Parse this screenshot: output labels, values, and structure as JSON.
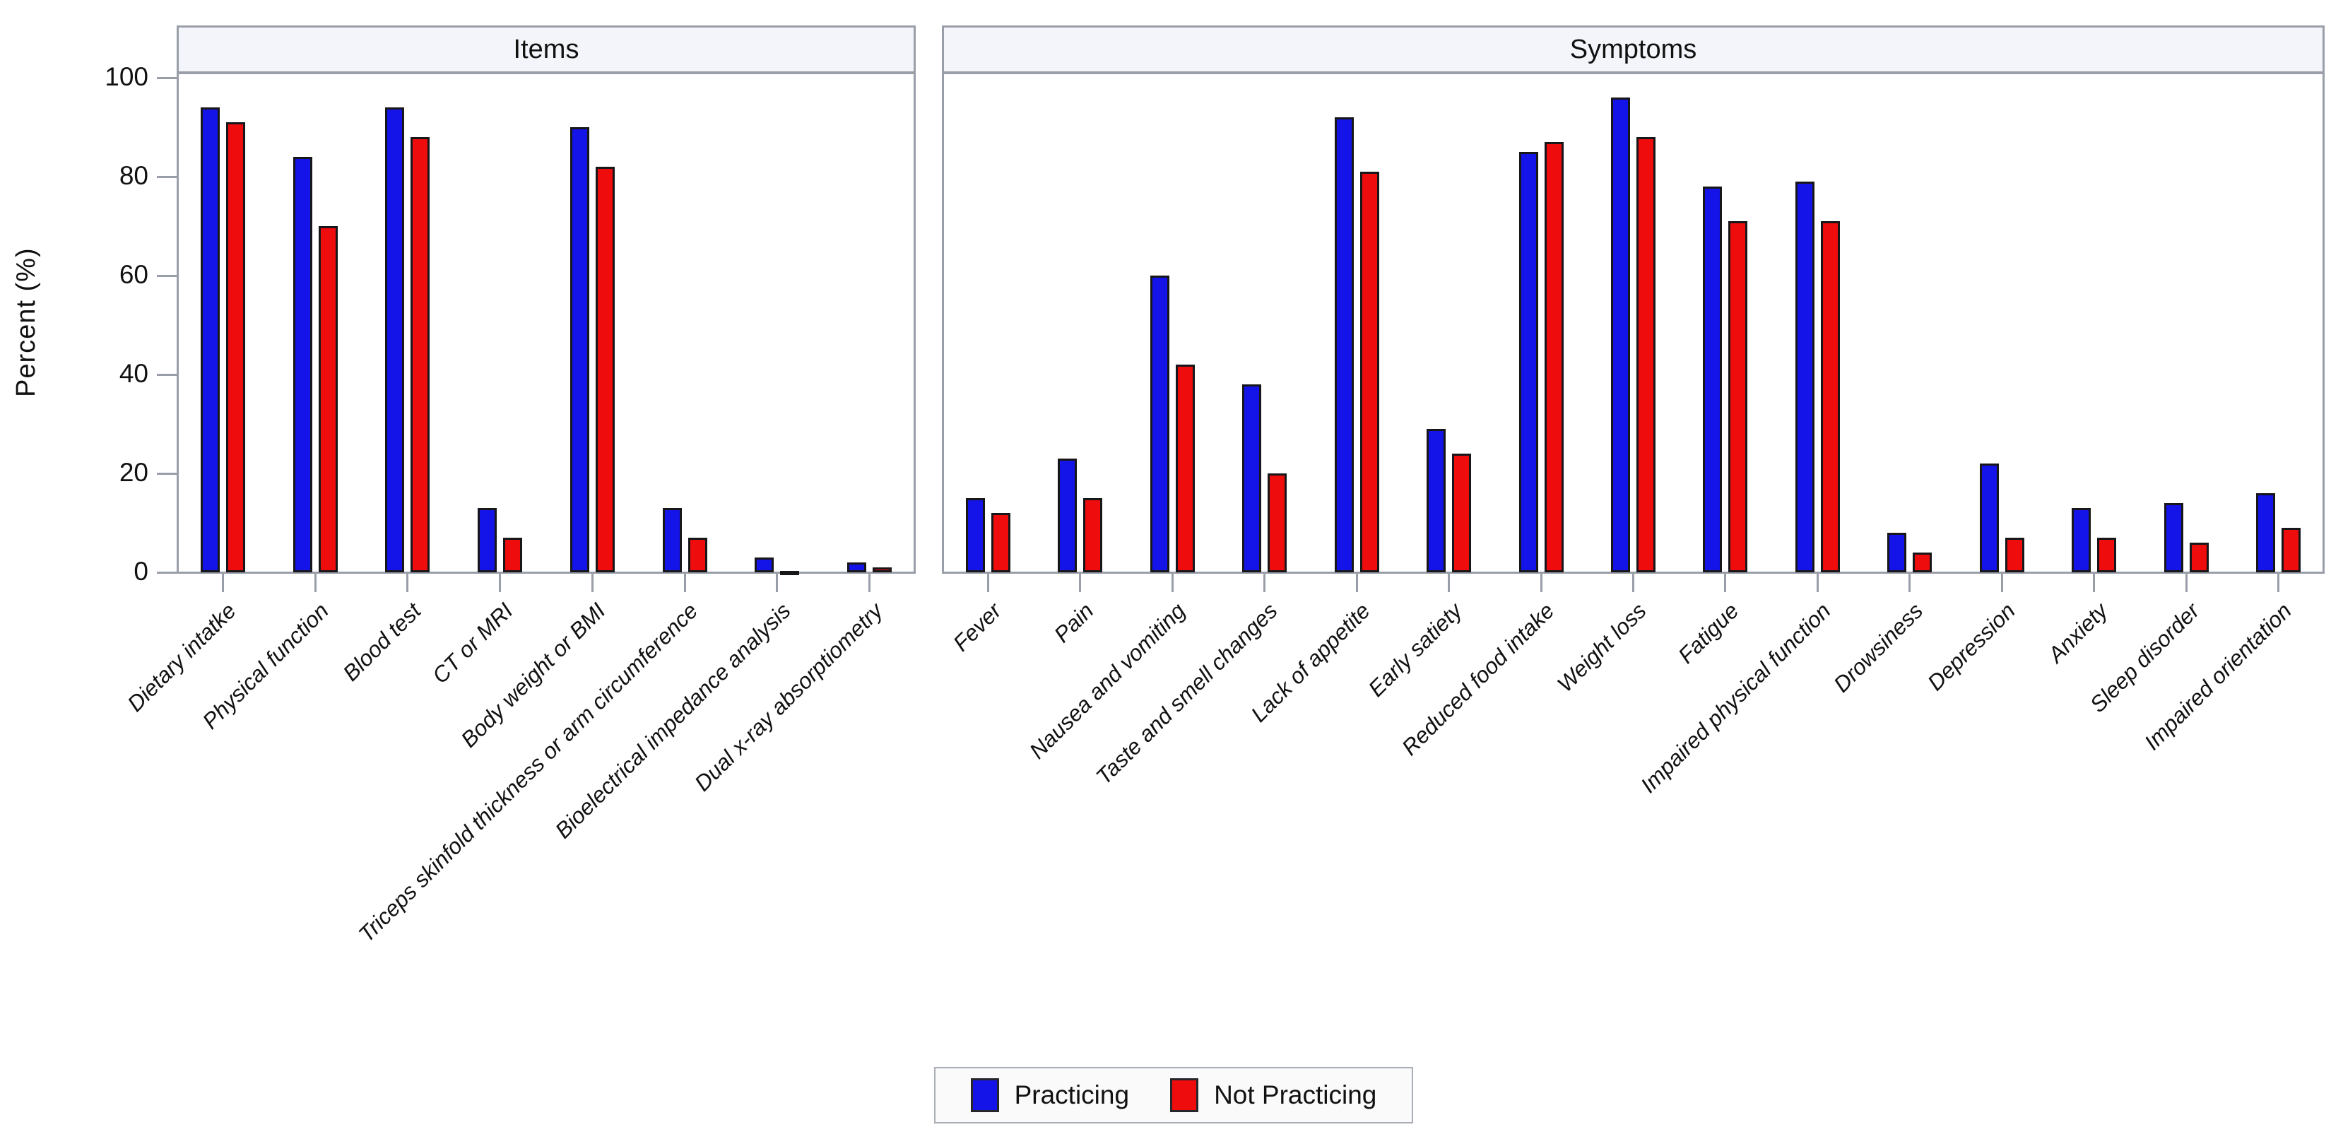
{
  "colors": {
    "practicing": "#1414e8",
    "not_practicing": "#ee0c0c",
    "bar_border": "#17171a",
    "panel_header_bg": "#f4f5fa",
    "frame_gray": "#9a9ea8",
    "text": "#111111",
    "legend_bg": "#fafafa"
  },
  "chart_data": {
    "type": "bar",
    "title": "",
    "ylabel": "Percent (%)",
    "xlabel": "",
    "ylim": [
      0,
      100
    ],
    "yticks": [
      0,
      20,
      40,
      60,
      80,
      100
    ],
    "grid": false,
    "legend_position": "bottom",
    "legend": [
      "Practicing",
      "Not Practicing"
    ],
    "panels": [
      {
        "title": "Items",
        "categories": [
          "Dietary intatke",
          "Physical function",
          "Blood test",
          "CT or MRI",
          "Body weight or BMI",
          "Triceps skinfold thickness or arm circumference",
          "Bioelectrical impedance analysis",
          "Dual x-ray absorptiometry"
        ],
        "series": [
          {
            "name": "Practicing",
            "values": [
              94,
              84,
              94,
              13,
              90,
              13,
              3,
              2
            ]
          },
          {
            "name": "Not Practicing",
            "values": [
              91,
              70,
              88,
              7,
              82,
              7,
              0.3,
              1
            ]
          }
        ]
      },
      {
        "title": "Symptoms",
        "categories": [
          "Fever",
          "Pain",
          "Nausea and vomiting",
          "Taste and smell changes",
          "Lack of appetite",
          "Early satiety",
          "Reduced food intake",
          "Weight loss",
          "Fatigue",
          "Impaired physical function",
          "Drowsiness",
          "Depression",
          "Anxiety",
          "Sleep disorder",
          "Impaired orientation"
        ],
        "series": [
          {
            "name": "Practicing",
            "values": [
              15,
              23,
              60,
              38,
              92,
              29,
              85,
              96,
              78,
              79,
              8,
              22,
              13,
              14,
              16
            ]
          },
          {
            "name": "Not Practicing",
            "values": [
              12,
              15,
              42,
              20,
              81,
              24,
              87,
              88,
              71,
              71,
              4,
              7,
              7,
              6,
              9
            ]
          }
        ]
      }
    ]
  }
}
